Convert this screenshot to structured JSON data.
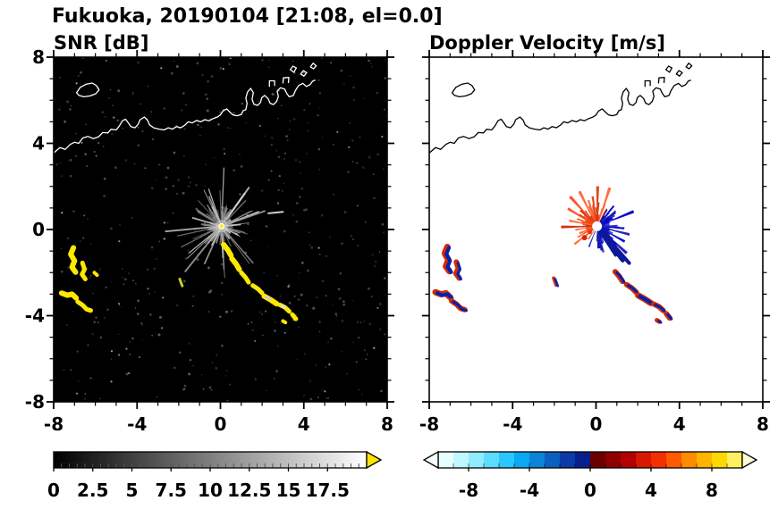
{
  "title": "Fukuoka, 20190104 [21:08, el=0.0]",
  "chart_data": {
    "type": "heatmap",
    "title": "Fukuoka, 20190104 [21:08, el=0.0]",
    "station": "Fukuoka",
    "date": "20190104",
    "time": "21:08",
    "elevation": "el=0.0",
    "axes": {
      "xlim": [
        -8,
        8
      ],
      "ylim": [
        -8,
        8
      ],
      "xticks": [
        -8,
        -4,
        0,
        4,
        8
      ],
      "xtick_labels": [
        "-8",
        "-4",
        "0",
        "4",
        "8"
      ],
      "yticks": [
        8,
        4,
        0,
        -4,
        -8
      ],
      "ytick_labels": [
        "8",
        "4",
        "0",
        "-4",
        "-8"
      ],
      "minor_tick_step": 1,
      "grid": false
    },
    "panels": [
      {
        "id": "snr",
        "title": "SNR [dB]",
        "background": "#000000",
        "coast_color": "#ffffff",
        "echo_color": "#ffe800",
        "colorbar": {
          "range": [
            0,
            20
          ],
          "tick_values": [
            0,
            2.5,
            5,
            7.5,
            10,
            12.5,
            15,
            17.5
          ],
          "tick_labels": [
            "0",
            "2.5",
            "5",
            "7.5",
            "10",
            "12.5",
            "15",
            "17.5"
          ],
          "style": "grayscale",
          "start_color": "#000000",
          "end_color": "#ffffff",
          "over_arrow_color": "#ffe400",
          "minor_tick_step": 0.5
        }
      },
      {
        "id": "doppler",
        "title": "Doppler Velocity [m/s]",
        "background": "#ffffff",
        "coast_color": "#000000",
        "negative_color": "#0021b0",
        "positive_color": "#d42a00",
        "colorbar": {
          "range": [
            -10,
            10
          ],
          "tick_values": [
            -8,
            -4,
            0,
            4,
            8
          ],
          "tick_labels": [
            "-8",
            "-4",
            "0",
            "4",
            "8"
          ],
          "style": "segmented",
          "segment_colors": [
            "#e6ffff",
            "#bff7ff",
            "#8fecff",
            "#5cdcff",
            "#2bc6ff",
            "#0aa8f0",
            "#0b84d8",
            "#0b5fc0",
            "#0a3ba8",
            "#071f8c",
            "#6b0000",
            "#8f0000",
            "#b30000",
            "#d91800",
            "#f53000",
            "#ff5a00",
            "#ff8c00",
            "#ffb400",
            "#ffd800",
            "#fff060"
          ],
          "under_arrow_color": "#f2ffff",
          "over_arrow_color": "#fffbd8",
          "minor_tick_step": 1
        }
      }
    ],
    "coastline": {
      "main": [
        [
          -8.0,
          3.55
        ],
        [
          -7.7,
          3.8
        ],
        [
          -7.45,
          3.72
        ],
        [
          -7.2,
          3.95
        ],
        [
          -7.0,
          4.05
        ],
        [
          -6.8,
          4.0
        ],
        [
          -6.6,
          4.25
        ],
        [
          -6.35,
          4.32
        ],
        [
          -6.1,
          4.22
        ],
        [
          -5.85,
          4.3
        ],
        [
          -5.65,
          4.5
        ],
        [
          -5.4,
          4.48
        ],
        [
          -5.25,
          4.65
        ],
        [
          -5.0,
          4.62
        ],
        [
          -4.85,
          4.8
        ],
        [
          -4.7,
          5.05
        ],
        [
          -4.55,
          5.12
        ],
        [
          -4.42,
          4.95
        ],
        [
          -4.3,
          4.78
        ],
        [
          -4.1,
          4.72
        ],
        [
          -3.95,
          4.88
        ],
        [
          -3.85,
          5.1
        ],
        [
          -3.65,
          5.22
        ],
        [
          -3.5,
          5.08
        ],
        [
          -3.4,
          4.86
        ],
        [
          -3.2,
          4.72
        ],
        [
          -2.95,
          4.66
        ],
        [
          -2.7,
          4.62
        ],
        [
          -2.5,
          4.72
        ],
        [
          -2.3,
          4.66
        ],
        [
          -2.1,
          4.78
        ],
        [
          -1.9,
          4.72
        ],
        [
          -1.7,
          4.85
        ],
        [
          -1.55,
          5.0
        ],
        [
          -1.35,
          4.95
        ],
        [
          -1.15,
          5.06
        ],
        [
          -0.95,
          5.0
        ],
        [
          -0.75,
          5.1
        ],
        [
          -0.55,
          5.05
        ],
        [
          -0.35,
          5.15
        ],
        [
          -0.15,
          5.22
        ],
        [
          0.0,
          5.32
        ],
        [
          0.12,
          5.5
        ],
        [
          0.3,
          5.6
        ],
        [
          0.45,
          5.45
        ],
        [
          0.6,
          5.32
        ],
        [
          0.8,
          5.28
        ],
        [
          1.0,
          5.34
        ],
        [
          1.1,
          5.52
        ],
        [
          1.22,
          5.56
        ],
        [
          1.28,
          5.85
        ],
        [
          1.22,
          6.1
        ],
        [
          1.3,
          6.38
        ],
        [
          1.45,
          6.55
        ],
        [
          1.58,
          6.35
        ],
        [
          1.52,
          6.05
        ],
        [
          1.6,
          5.82
        ],
        [
          1.78,
          5.76
        ],
        [
          1.92,
          5.9
        ],
        [
          1.98,
          6.12
        ],
        [
          2.12,
          6.22
        ],
        [
          2.28,
          6.08
        ],
        [
          2.38,
          5.86
        ],
        [
          2.55,
          5.8
        ],
        [
          2.7,
          5.95
        ],
        [
          2.78,
          6.18
        ],
        [
          2.72,
          6.42
        ],
        [
          2.88,
          6.58
        ],
        [
          3.08,
          6.52
        ],
        [
          3.18,
          6.32
        ],
        [
          3.3,
          6.16
        ],
        [
          3.5,
          6.22
        ],
        [
          3.6,
          6.45
        ],
        [
          3.75,
          6.68
        ],
        [
          3.95,
          6.78
        ],
        [
          4.12,
          6.64
        ],
        [
          4.3,
          6.72
        ],
        [
          4.42,
          6.88
        ],
        [
          4.55,
          6.94
        ]
      ],
      "islands": [
        [
          [
            -6.9,
            6.35
          ],
          [
            -6.72,
            6.6
          ],
          [
            -6.45,
            6.74
          ],
          [
            -6.15,
            6.8
          ],
          [
            -5.95,
            6.68
          ],
          [
            -5.82,
            6.48
          ],
          [
            -5.98,
            6.3
          ],
          [
            -6.25,
            6.2
          ],
          [
            -6.55,
            6.16
          ],
          [
            -6.78,
            6.22
          ]
        ],
        [
          [
            3.35,
            7.42
          ],
          [
            3.48,
            7.58
          ],
          [
            3.64,
            7.5
          ],
          [
            3.52,
            7.3
          ]
        ],
        [
          [
            3.85,
            7.22
          ],
          [
            3.98,
            7.38
          ],
          [
            4.14,
            7.28
          ],
          [
            4.0,
            7.12
          ]
        ],
        [
          [
            4.32,
            7.55
          ],
          [
            4.45,
            7.72
          ],
          [
            4.6,
            7.6
          ],
          [
            4.46,
            7.46
          ]
        ]
      ],
      "piers": [
        [
          [
            2.35,
            6.62
          ],
          [
            2.35,
            6.9
          ],
          [
            2.6,
            6.9
          ],
          [
            2.6,
            6.66
          ]
        ],
        [
          [
            3.0,
            6.78
          ],
          [
            3.02,
            7.04
          ],
          [
            3.28,
            7.06
          ],
          [
            3.26,
            6.8
          ]
        ]
      ]
    },
    "radar": {
      "center": [
        0.05,
        0.15
      ],
      "fan_snr": {
        "seed": 13,
        "ray_count": 115,
        "gray_min": 90,
        "gray_max": 215,
        "len_min": 0.25,
        "len_base_max": 1.05,
        "long_ray_prob": 0.28,
        "len_long_max": 2.8
      },
      "fan_doppler": {
        "seed": 29,
        "wedge_count": 150,
        "red_sector_deg": [
          60,
          235
        ],
        "sparse_sector_deg": [
          235,
          268
        ],
        "red_colors": [
          "#e53a10",
          "#ff4d1a",
          "#cc2a00",
          "#ff6633"
        ],
        "blue_colors": [
          "#1a1ab3",
          "#0000cc",
          "#2b2bd6",
          "#000099"
        ],
        "len_min": 0.35,
        "len_base_max": 1.15,
        "long_prob": 0.18,
        "len_long_max": 1.9
      },
      "doppler_streaks": [
        {
          "angle_deg": -48,
          "len": 2.3,
          "w": 4
        },
        {
          "angle_deg": -52,
          "len": 2.0,
          "w": 5
        },
        {
          "angle_deg": -56,
          "len": 1.6,
          "w": 4
        },
        {
          "angle_deg": -50,
          "len": 1.25,
          "w": 7
        }
      ],
      "doppler_specks": [
        {
          "x": -0.55,
          "y": -0.38,
          "r": 3,
          "color": "#d42a00"
        },
        {
          "x": -0.3,
          "y": -0.12,
          "r": 2.5,
          "color": "#e53a10"
        }
      ],
      "echo_blobs": [
        {
          "pts": [
            [
              -7.05,
              -0.85
            ],
            [
              -7.18,
              -1.15
            ],
            [
              -7.0,
              -1.45
            ],
            [
              -7.12,
              -1.75
            ],
            [
              -6.95,
              -1.98
            ]
          ],
          "w": 6,
          "in_doppler": true
        },
        {
          "pts": [
            [
              -6.62,
              -1.55
            ],
            [
              -6.52,
              -1.85
            ],
            [
              -6.64,
              -2.08
            ],
            [
              -6.48,
              -2.3
            ]
          ],
          "w": 5,
          "in_doppler": true
        },
        {
          "pts": [
            [
              -7.62,
              -2.95
            ],
            [
              -7.35,
              -3.05
            ],
            [
              -7.12,
              -3.0
            ],
            [
              -6.92,
              -3.18
            ]
          ],
          "w": 6,
          "in_doppler": true
        },
        {
          "pts": [
            [
              -6.85,
              -3.35
            ],
            [
              -6.6,
              -3.52
            ],
            [
              -6.42,
              -3.7
            ],
            [
              -6.22,
              -3.76
            ]
          ],
          "w": 5,
          "in_doppler": true
        },
        {
          "pts": [
            [
              -6.05,
              -2.0
            ],
            [
              -5.92,
              -2.12
            ]
          ],
          "w": 4,
          "in_doppler": false
        },
        {
          "pts": [
            [
              0.15,
              -0.7
            ],
            [
              0.35,
              -0.95
            ],
            [
              0.5,
              -1.2
            ]
          ],
          "w": 6,
          "in_doppler": false
        },
        {
          "pts": [
            [
              0.55,
              -1.35
            ],
            [
              0.75,
              -1.6
            ],
            [
              0.9,
              -1.85
            ]
          ],
          "w": 6,
          "in_doppler": false
        },
        {
          "pts": [
            [
              1.0,
              -2.0
            ],
            [
              1.2,
              -2.22
            ],
            [
              1.35,
              -2.45
            ]
          ],
          "w": 5,
          "in_doppler": true
        },
        {
          "pts": [
            [
              1.55,
              -2.6
            ],
            [
              1.8,
              -2.76
            ],
            [
              2.0,
              -2.95
            ]
          ],
          "w": 5,
          "in_doppler": true
        },
        {
          "pts": [
            [
              2.1,
              -3.1
            ],
            [
              2.4,
              -3.26
            ],
            [
              2.7,
              -3.45
            ]
          ],
          "w": 6,
          "in_doppler": true
        },
        {
          "pts": [
            [
              2.85,
              -3.5
            ],
            [
              3.1,
              -3.62
            ],
            [
              3.3,
              -3.8
            ]
          ],
          "w": 5,
          "in_doppler": true
        },
        {
          "pts": [
            [
              3.45,
              -3.95
            ],
            [
              3.62,
              -4.15
            ]
          ],
          "w": 5,
          "in_doppler": true
        },
        {
          "pts": [
            [
              3.0,
              -4.25
            ],
            [
              3.12,
              -4.32
            ]
          ],
          "w": 4,
          "in_doppler": true
        },
        {
          "pts": [
            [
              -1.95,
              -2.3
            ],
            [
              -1.83,
              -2.62
            ]
          ],
          "w": 3,
          "in_doppler": true,
          "snr_color": "#c8c832"
        },
        {
          "pts": [
            [
              2.3,
              0.75
            ],
            [
              3.0,
              0.82
            ]
          ],
          "w": 2,
          "in_doppler": false,
          "snr_color": "#cccccc"
        }
      ],
      "snr_overlay_specks": [
        {
          "pts": [
            [
              2.2,
              -3.15
            ],
            [
              2.38,
              -3.22
            ]
          ],
          "w": 3,
          "color": "#cccccc"
        },
        {
          "pts": [
            [
              2.95,
              -3.55
            ],
            [
              3.08,
              -3.62
            ]
          ],
          "w": 3,
          "color": "#dddddd"
        }
      ],
      "noise": {
        "seed": 99,
        "count": 430,
        "gray_min": 25,
        "gray_max": 95,
        "bright_count": 40,
        "bright_min": 100,
        "bright_max": 170
      }
    }
  }
}
